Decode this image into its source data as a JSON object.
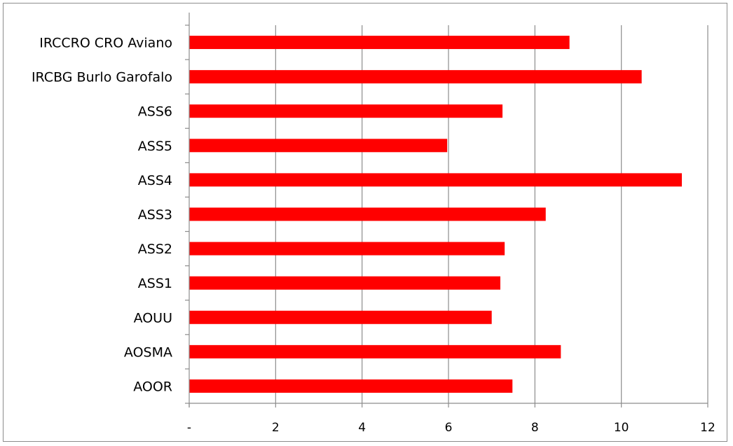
{
  "chart_data": {
    "type": "bar",
    "orientation": "horizontal",
    "title": "",
    "xlabel": "",
    "ylabel": "",
    "categories": [
      "IRCCRO CRO Aviano",
      "IRCBG Burlo Garofalo",
      "ASS6",
      "ASS5",
      "ASS4",
      "ASS3",
      "ASS2",
      "ASS1",
      "AOUU",
      "AOSMA",
      "AOOR"
    ],
    "values": [
      8.8,
      10.47,
      7.25,
      5.97,
      11.4,
      8.25,
      7.3,
      7.2,
      7.0,
      8.6,
      7.48
    ],
    "xlim": [
      0,
      12
    ],
    "xticks": [
      0,
      2,
      4,
      6,
      8,
      10,
      12
    ],
    "xtick_labels": [
      "-",
      "2",
      "4",
      "6",
      "8",
      "10",
      "12"
    ],
    "grid": "vertical",
    "legend": "none",
    "bar_color": "#ff0000",
    "grid_color": "#8c8c8c"
  }
}
